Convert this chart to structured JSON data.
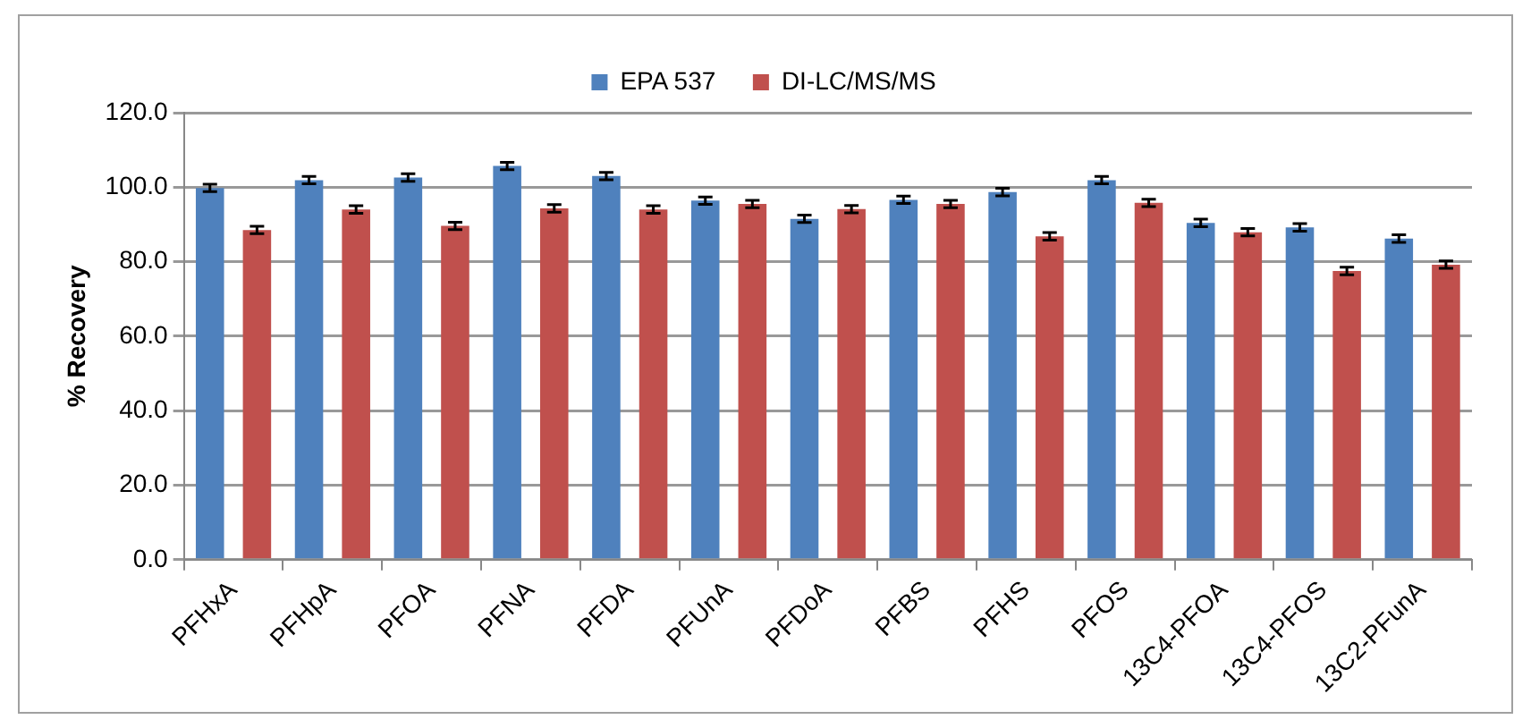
{
  "chart_data": {
    "type": "bar",
    "ylabel": "% Recovery",
    "categories": [
      "PFHxA",
      "PFHpA",
      "PFOA",
      "PFNA",
      "PFDA",
      "PFUnA",
      "PFDoA",
      "PFBS",
      "PFHS",
      "PFOS",
      "13C4-PFOA",
      "13C4-PFOS",
      "13C2-PFunA"
    ],
    "series": [
      {
        "name": "EPA 537",
        "color": "#4f81bd",
        "values": [
          99.8,
          101.9,
          102.6,
          105.7,
          103.0,
          96.4,
          91.5,
          96.6,
          98.7,
          101.9,
          90.4,
          89.2,
          86.2
        ],
        "errors": [
          1,
          1,
          1,
          1,
          1,
          1,
          1,
          1,
          1,
          1,
          1,
          1,
          1
        ]
      },
      {
        "name": "DI-LC/MS/MS",
        "color": "#c0504d",
        "values": [
          88.5,
          94.0,
          89.6,
          94.3,
          94.0,
          95.5,
          94.1,
          95.5,
          86.8,
          95.8,
          87.9,
          77.5,
          79.2
        ],
        "errors": [
          1,
          1,
          1,
          1,
          1,
          1,
          1,
          1,
          1,
          1,
          1,
          1,
          1
        ]
      }
    ],
    "ylim": [
      0,
      120
    ],
    "yticks": [
      {
        "value": 0,
        "label": "0.0"
      },
      {
        "value": 20,
        "label": "20.0"
      },
      {
        "value": 40,
        "label": "40.0"
      },
      {
        "value": 60,
        "label": "60.0"
      },
      {
        "value": 80,
        "label": "80.0"
      },
      {
        "value": 100,
        "label": "100.0"
      },
      {
        "value": 120,
        "label": "120.0"
      }
    ],
    "grid": "y",
    "legend": "top"
  }
}
